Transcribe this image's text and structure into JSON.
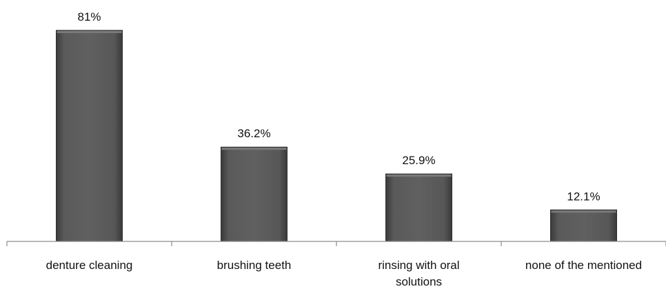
{
  "chart_data": {
    "type": "bar",
    "categories": [
      "denture cleaning",
      "brushing teeth",
      "rinsing with oral solutions",
      "none of the mentioned"
    ],
    "category_lines": [
      [
        "denture cleaning"
      ],
      [
        "brushing teeth"
      ],
      [
        "rinsing with oral",
        "solutions"
      ],
      [
        "none of the mentioned"
      ]
    ],
    "values": [
      81,
      36.2,
      25.9,
      12.1
    ],
    "data_labels": [
      "81%",
      "36.2%",
      "25.9%",
      "12.1%"
    ],
    "ylim": [
      0,
      90
    ],
    "grid": false,
    "legend": "none",
    "bar_color": "#555555",
    "title": "",
    "xlabel": "",
    "ylabel": ""
  }
}
